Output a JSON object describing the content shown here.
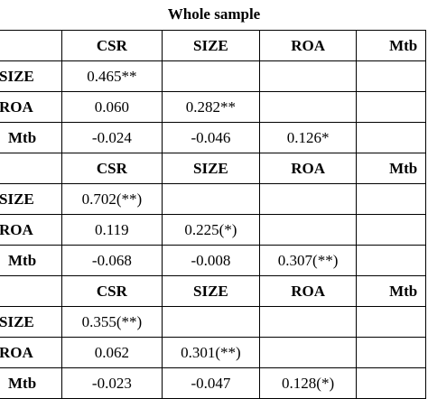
{
  "title": "Whole sample",
  "blocks": [
    {
      "header": [
        "",
        "CSR",
        "SIZE",
        "ROA",
        "Mtb"
      ],
      "rows": [
        {
          "label": "SIZE",
          "cells": [
            "0.465**",
            "",
            "",
            ""
          ]
        },
        {
          "label": "ROA",
          "cells": [
            "0.060",
            "0.282**",
            "",
            ""
          ]
        },
        {
          "label": "Mtb",
          "cells": [
            "-0.024",
            "-0.046",
            "0.126*",
            ""
          ]
        }
      ]
    },
    {
      "header": [
        "",
        "CSR",
        "SIZE",
        "ROA",
        "Mtb"
      ],
      "rows": [
        {
          "label": "SIZE",
          "cells": [
            "0.702(**)",
            "",
            "",
            ""
          ]
        },
        {
          "label": "ROA",
          "cells": [
            "0.119",
            "0.225(*)",
            "",
            ""
          ]
        },
        {
          "label": "Mtb",
          "cells": [
            "-0.068",
            "-0.008",
            "0.307(**)",
            ""
          ]
        }
      ]
    },
    {
      "header": [
        "",
        "CSR",
        "SIZE",
        "ROA",
        "Mtb"
      ],
      "rows": [
        {
          "label": "SIZE",
          "cells": [
            "0.355(**)",
            "",
            "",
            ""
          ]
        },
        {
          "label": "ROA",
          "cells": [
            "0.062",
            "0.301(**)",
            "",
            ""
          ]
        },
        {
          "label": "Mtb",
          "cells": [
            "-0.023",
            "-0.047",
            "0.128(*)",
            ""
          ]
        }
      ]
    }
  ]
}
